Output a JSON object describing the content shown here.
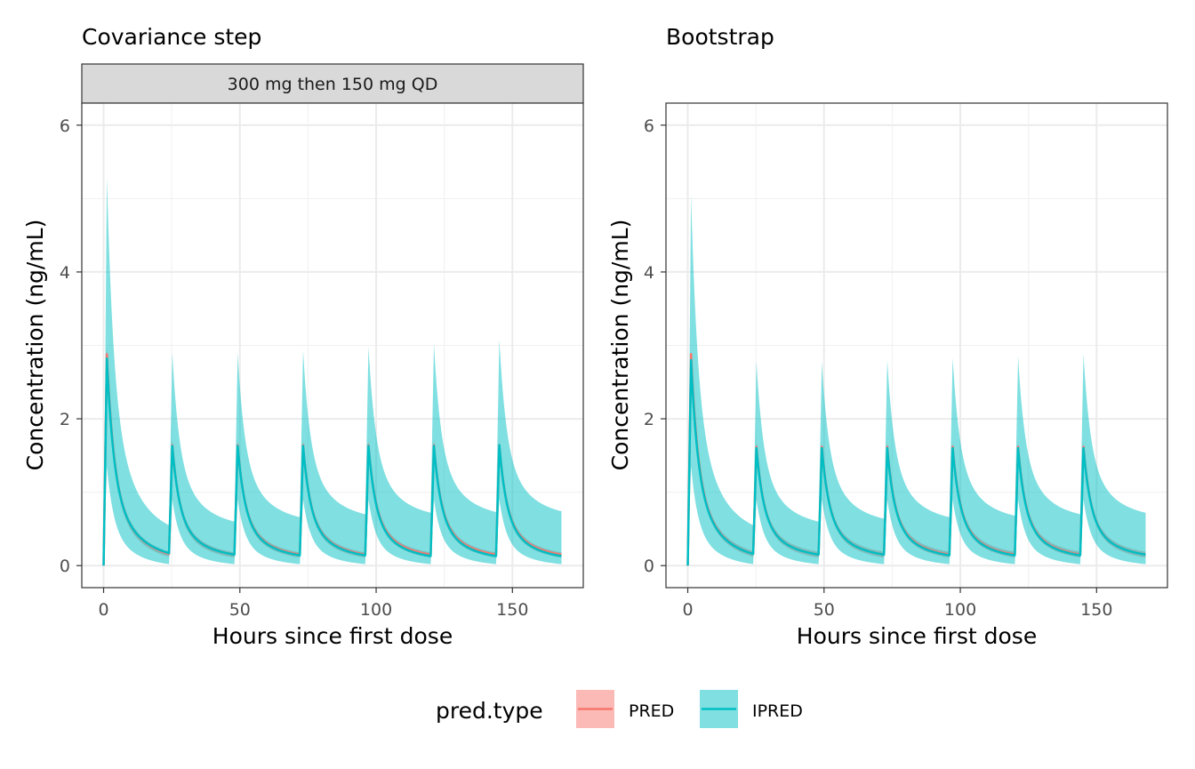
{
  "chart_data": [
    {
      "type": "line",
      "title": "Covariance step",
      "strip_label": "300 mg then 150 mg QD",
      "xlabel": "Hours since first dose",
      "ylabel": "Concentration (ng/mL)",
      "xlim": [
        -8,
        176
      ],
      "ylim": [
        -0.3,
        6.3
      ],
      "x_ticks": [
        0,
        50,
        100,
        150
      ],
      "y_ticks": [
        0,
        2,
        4,
        6
      ],
      "grid": true,
      "dose_times": [
        0,
        24,
        48,
        72,
        96,
        120,
        144
      ],
      "end_time": 168,
      "series": [
        {
          "name": "PRED",
          "color": "#F8766D",
          "peaks": [
            2.88,
            1.64,
            1.64,
            1.64,
            1.64,
            1.64,
            1.64
          ],
          "troughs": [
            0.16,
            0.15,
            0.15,
            0.15,
            0.15,
            0.15,
            0.15
          ],
          "band_upper_peaks": [
            3.0,
            1.72,
            1.72,
            1.72,
            1.72,
            1.72,
            1.72
          ],
          "band_upper_troughs": [
            0.19,
            0.18,
            0.18,
            0.18,
            0.18,
            0.18,
            0.18
          ],
          "band_lower_peaks": [
            2.7,
            1.55,
            1.55,
            1.55,
            1.55,
            1.55,
            1.55
          ],
          "band_lower_troughs": [
            0.12,
            0.11,
            0.11,
            0.11,
            0.11,
            0.11,
            0.11
          ]
        },
        {
          "name": "IPRED",
          "color": "#00BFC4",
          "peaks": [
            2.82,
            1.63,
            1.63,
            1.63,
            1.63,
            1.63,
            1.64
          ],
          "troughs": [
            0.17,
            0.15,
            0.14,
            0.14,
            0.13,
            0.13,
            0.13
          ],
          "band_upper_peaks": [
            5.3,
            2.9,
            2.9,
            2.93,
            2.98,
            3.02,
            3.08
          ],
          "band_upper_troughs": [
            0.55,
            0.6,
            0.66,
            0.7,
            0.72,
            0.73,
            0.74
          ],
          "band_lower_peaks": [
            1.35,
            0.9,
            0.9,
            0.9,
            0.9,
            0.9,
            0.9
          ],
          "band_lower_troughs": [
            0.02,
            0.02,
            0.02,
            0.02,
            0.02,
            0.02,
            0.02
          ]
        }
      ]
    },
    {
      "type": "line",
      "title": "Bootstrap",
      "xlabel": "Hours since first dose",
      "ylabel": "Concentration (ng/mL)",
      "xlim": [
        -8,
        176
      ],
      "ylim": [
        -0.3,
        6.3
      ],
      "x_ticks": [
        0,
        50,
        100,
        150
      ],
      "y_ticks": [
        0,
        2,
        4,
        6
      ],
      "grid": true,
      "dose_times": [
        0,
        24,
        48,
        72,
        96,
        120,
        144
      ],
      "end_time": 168,
      "series": [
        {
          "name": "PRED",
          "color": "#F8766D",
          "peaks": [
            2.88,
            1.62,
            1.62,
            1.62,
            1.62,
            1.62,
            1.62
          ],
          "troughs": [
            0.16,
            0.15,
            0.15,
            0.15,
            0.15,
            0.15,
            0.15
          ],
          "band_upper_peaks": [
            2.95,
            1.68,
            1.68,
            1.68,
            1.68,
            1.68,
            1.68
          ],
          "band_upper_troughs": [
            0.2,
            0.19,
            0.19,
            0.19,
            0.19,
            0.19,
            0.19
          ],
          "band_lower_peaks": [
            2.78,
            1.56,
            1.56,
            1.56,
            1.56,
            1.56,
            1.56
          ],
          "band_lower_troughs": [
            0.12,
            0.11,
            0.11,
            0.11,
            0.11,
            0.11,
            0.11
          ]
        },
        {
          "name": "IPRED",
          "color": "#00BFC4",
          "peaks": [
            2.8,
            1.6,
            1.6,
            1.6,
            1.6,
            1.6,
            1.6
          ],
          "troughs": [
            0.16,
            0.15,
            0.15,
            0.14,
            0.14,
            0.14,
            0.15
          ],
          "band_upper_peaks": [
            5.05,
            2.78,
            2.78,
            2.8,
            2.83,
            2.85,
            2.88
          ],
          "band_upper_troughs": [
            0.55,
            0.6,
            0.64,
            0.66,
            0.68,
            0.7,
            0.72
          ],
          "band_lower_peaks": [
            1.35,
            0.9,
            0.9,
            0.9,
            0.9,
            0.9,
            0.9
          ],
          "band_lower_troughs": [
            0.02,
            0.02,
            0.02,
            0.02,
            0.02,
            0.02,
            0.02
          ]
        }
      ]
    }
  ],
  "legend": {
    "title": "pred.type",
    "placement": "bottom",
    "items": [
      {
        "label": "PRED",
        "color": "#F8766D"
      },
      {
        "label": "IPRED",
        "color": "#00BFC4"
      }
    ]
  }
}
